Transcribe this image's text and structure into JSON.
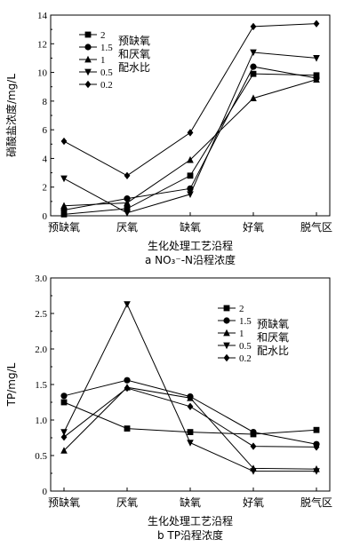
{
  "chart_data": [
    {
      "type": "line",
      "categories": [
        "预缺氧",
        "厌氧",
        "缺氧",
        "好氧",
        "脱气区"
      ],
      "xlabel": "生化处理工艺沿程",
      "caption": "a NO₃⁻-N沿程浓度",
      "ylabel": "硝酸盐浓度/mg/L",
      "ylim": [
        0,
        14
      ],
      "yticks": [
        "0",
        "2",
        "4",
        "6",
        "8",
        "10",
        "12",
        "14"
      ],
      "legend_placement": "top-left",
      "legend_note": [
        "预缺氧",
        "和厌氧",
        "配水比"
      ],
      "series": [
        {
          "name": "2",
          "marker": "square",
          "values": [
            0.1,
            0.5,
            2.8,
            9.9,
            9.8
          ]
        },
        {
          "name": "1.5",
          "marker": "circle",
          "values": [
            0.4,
            1.2,
            1.9,
            10.4,
            9.6
          ]
        },
        {
          "name": "1",
          "marker": "triangle-up",
          "values": [
            0.7,
            0.9,
            3.9,
            8.2,
            9.5
          ]
        },
        {
          "name": "0.5",
          "marker": "triangle-down",
          "values": [
            2.6,
            0.2,
            1.5,
            11.4,
            11.0
          ]
        },
        {
          "name": "0.2",
          "marker": "diamond",
          "values": [
            5.2,
            2.8,
            5.8,
            13.2,
            13.4
          ]
        }
      ]
    },
    {
      "type": "line",
      "categories": [
        "预缺氧",
        "厌氧",
        "缺氧",
        "好氧",
        "脱气区"
      ],
      "xlabel": "生化处理工艺沿程",
      "caption": "b TP沿程浓度",
      "ylabel": "TP/mg/L",
      "ylim": [
        0,
        3.0
      ],
      "yticks": [
        "0",
        "0.5",
        "1.0",
        "1.5",
        "2.0",
        "2.5",
        "3.0"
      ],
      "legend_placement": "top-right",
      "legend_note": [
        "预缺氧",
        "和厌氧",
        "配水比"
      ],
      "series": [
        {
          "name": "2",
          "marker": "square",
          "values": [
            1.25,
            0.88,
            0.83,
            0.8,
            0.86
          ]
        },
        {
          "name": "1.5",
          "marker": "circle",
          "values": [
            1.34,
            1.56,
            1.33,
            0.83,
            0.66
          ]
        },
        {
          "name": "1",
          "marker": "triangle-up",
          "values": [
            0.57,
            1.46,
            1.31,
            0.32,
            0.31
          ]
        },
        {
          "name": "0.5",
          "marker": "triangle-down",
          "values": [
            0.83,
            2.63,
            0.68,
            0.28,
            0.28
          ]
        },
        {
          "name": "0.2",
          "marker": "diamond",
          "values": [
            0.76,
            1.45,
            1.19,
            0.63,
            0.62
          ]
        }
      ]
    }
  ]
}
